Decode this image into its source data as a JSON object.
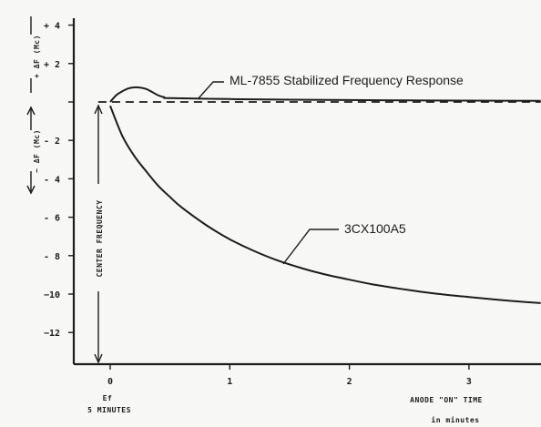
{
  "chart_data": {
    "type": "line",
    "title": "",
    "xlabel": "ANODE \"ON\" TIME",
    "xlabel_sub": "in minutes",
    "x_origin_label": "Ef",
    "x_origin_label_sub": "5 MINUTES",
    "ylabel_positive": "+ ΔF (Mc)",
    "ylabel_negative": "− ΔF (Mc)",
    "reference_line_label": "CENTER FREQUENCY",
    "xlim": [
      -0.25,
      3.6
    ],
    "ylim": [
      -13.5,
      4.5
    ],
    "x_ticks": [
      0,
      1,
      2,
      3
    ],
    "x_tick_labels": [
      "0",
      "1",
      "2",
      "3"
    ],
    "y_ticks": [
      4,
      2,
      0,
      -2,
      -4,
      -6,
      -8,
      -10,
      -12
    ],
    "y_tick_labels": [
      "+ 4",
      "+ 2",
      "",
      "- 2",
      "- 4",
      "- 6",
      "- 8",
      "−10",
      "−12"
    ],
    "grid": false,
    "series": [
      {
        "name": "ML-7855 Stabilized Frequency Response",
        "x": [
          0.0,
          0.05,
          0.1,
          0.15,
          0.2,
          0.25,
          0.3,
          0.35,
          0.4,
          0.45,
          0.5,
          1.0,
          1.5,
          2.0,
          2.5,
          3.0,
          3.6
        ],
        "y": [
          0.0,
          0.35,
          0.55,
          0.7,
          0.76,
          0.75,
          0.68,
          0.52,
          0.35,
          0.25,
          0.2,
          0.15,
          0.12,
          0.1,
          0.08,
          0.07,
          0.06
        ]
      },
      {
        "name": "3CX100A5",
        "x": [
          0.0,
          0.1,
          0.2,
          0.3,
          0.4,
          0.5,
          0.6,
          0.8,
          1.0,
          1.2,
          1.4,
          1.6,
          1.8,
          2.0,
          2.2,
          2.4,
          2.6,
          2.8,
          3.0,
          3.2,
          3.4,
          3.6
        ],
        "y": [
          -0.2,
          -1.75,
          -2.8,
          -3.6,
          -4.35,
          -4.95,
          -5.5,
          -6.4,
          -7.15,
          -7.75,
          -8.25,
          -8.65,
          -8.98,
          -9.25,
          -9.5,
          -9.7,
          -9.88,
          -10.03,
          -10.15,
          -10.27,
          -10.38,
          -10.47
        ]
      },
      {
        "name": "center-frequency",
        "style": "dashed",
        "x": [
          -0.1,
          3.6
        ],
        "y": [
          0.0,
          0.0
        ]
      }
    ]
  }
}
